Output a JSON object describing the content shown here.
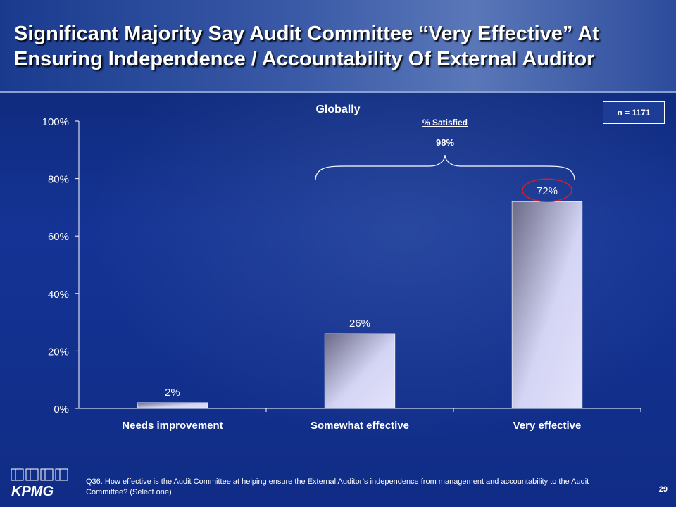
{
  "slide": {
    "title": "Significant Majority Say Audit Committee “Very Effective” At Ensuring Independence  / Accountability Of External Auditor",
    "n_label": "n = 1171",
    "satisfied_label": "% Satisfied",
    "satisfied_value": "98%",
    "footnote": "Q36. How effective is the Audit Committee at helping ensure the External Auditor’s independence from management and accountability to the Audit Committee? (Select one)",
    "page_number": "29",
    "logo_text": "KPMG"
  },
  "colors": {
    "bar_light": "#d4d4f5",
    "bar_dark": "#6a6a86",
    "axis": "#ffffff",
    "highlight_ellipse": "#d0202a"
  },
  "chart_data": {
    "type": "bar",
    "title": "Globally",
    "categories": [
      "Needs improvement",
      "Somewhat effective",
      "Very effective"
    ],
    "values": [
      2,
      26,
      72
    ],
    "value_labels": [
      "2%",
      "26%",
      "72%"
    ],
    "ylim": [
      0,
      100
    ],
    "yticks": [
      0,
      20,
      40,
      60,
      80,
      100
    ],
    "ytick_labels": [
      "0%",
      "20%",
      "40%",
      "60%",
      "80%",
      "100%"
    ],
    "xlabel": "",
    "ylabel": "",
    "grid": false,
    "legend": "none",
    "highlighted_category": "Very effective"
  }
}
